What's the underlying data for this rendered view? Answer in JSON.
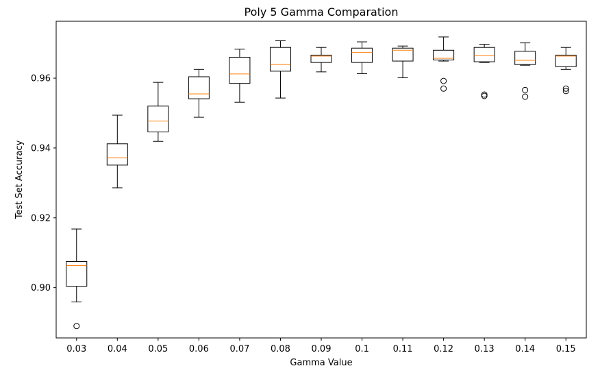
{
  "chart_data": {
    "type": "box",
    "title": "Poly 5 Gamma Comparation",
    "xlabel": "Gamma Value",
    "ylabel": "Test Set Accuracy",
    "ylim": [
      0.8856,
      0.9763
    ],
    "yticks": [
      "0.90",
      "0.92",
      "0.94",
      "0.96"
    ],
    "ytick_values": [
      0.9,
      0.92,
      0.94,
      0.96
    ],
    "grid": false,
    "colors": {
      "box": "#000000",
      "median": "#ff7f0e",
      "flier": "#000000"
    },
    "categories": [
      "0.03",
      "0.04",
      "0.05",
      "0.06",
      "0.07",
      "0.08",
      "0.09",
      "0.1",
      "0.11",
      "0.12",
      "0.13",
      "0.14",
      "0.15"
    ],
    "boxes": [
      {
        "whislo": 0.8959,
        "q1": 0.9004,
        "med": 0.9063,
        "q3": 0.9075,
        "whishi": 0.9168,
        "fliers": [
          0.889
        ]
      },
      {
        "whislo": 0.9286,
        "q1": 0.9351,
        "med": 0.9372,
        "q3": 0.9412,
        "whishi": 0.9494,
        "fliers": []
      },
      {
        "whislo": 0.9419,
        "q1": 0.9446,
        "med": 0.9477,
        "q3": 0.952,
        "whishi": 0.9588,
        "fliers": []
      },
      {
        "whislo": 0.9488,
        "q1": 0.9541,
        "med": 0.9555,
        "q3": 0.9604,
        "whishi": 0.9625,
        "fliers": []
      },
      {
        "whislo": 0.9531,
        "q1": 0.9585,
        "med": 0.9612,
        "q3": 0.966,
        "whishi": 0.9683,
        "fliers": []
      },
      {
        "whislo": 0.9543,
        "q1": 0.962,
        "med": 0.9639,
        "q3": 0.9688,
        "whishi": 0.9707,
        "fliers": []
      },
      {
        "whislo": 0.9618,
        "q1": 0.9645,
        "med": 0.9663,
        "q3": 0.9666,
        "whishi": 0.9688,
        "fliers": []
      },
      {
        "whislo": 0.9613,
        "q1": 0.9645,
        "med": 0.9674,
        "q3": 0.9686,
        "whishi": 0.9704,
        "fliers": []
      },
      {
        "whislo": 0.9601,
        "q1": 0.9649,
        "med": 0.968,
        "q3": 0.9686,
        "whishi": 0.9692,
        "fliers": []
      },
      {
        "whislo": 0.9649,
        "q1": 0.9652,
        "med": 0.9657,
        "q3": 0.968,
        "whishi": 0.9718,
        "fliers": [
          0.9592,
          0.957
        ]
      },
      {
        "whislo": 0.9645,
        "q1": 0.9647,
        "med": 0.9665,
        "q3": 0.9688,
        "whishi": 0.9697,
        "fliers": [
          0.9553,
          0.9549
        ]
      },
      {
        "whislo": 0.9637,
        "q1": 0.9639,
        "med": 0.9651,
        "q3": 0.9677,
        "whishi": 0.9701,
        "fliers": [
          0.9566,
          0.9547
        ]
      },
      {
        "whislo": 0.9625,
        "q1": 0.9633,
        "med": 0.9663,
        "q3": 0.9666,
        "whishi": 0.9688,
        "fliers": [
          0.957,
          0.9563
        ]
      }
    ]
  }
}
